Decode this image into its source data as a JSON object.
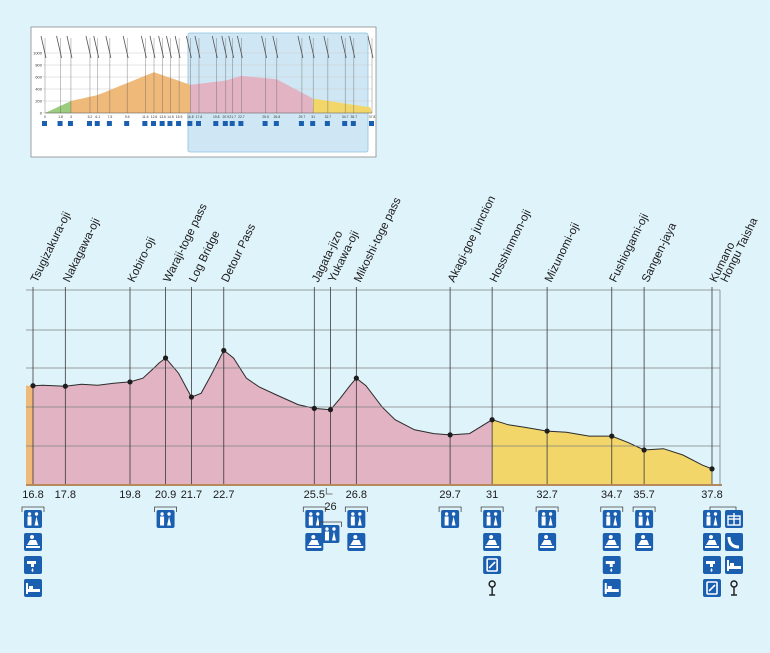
{
  "overview": {
    "markers": [
      {
        "x": 0,
        "y": 0
      },
      {
        "x": 3,
        "y": 200
      },
      {
        "x": 6.1,
        "y": 300
      },
      {
        "x": 9.5,
        "y": 500
      },
      {
        "x": 12.6,
        "y": 680
      },
      {
        "x": 16.8,
        "y": 470
      },
      {
        "x": 20.9,
        "y": 540
      },
      {
        "x": 22.7,
        "y": 620
      },
      {
        "x": 26.8,
        "y": 560
      },
      {
        "x": 31,
        "y": 240
      },
      {
        "x": 37.8,
        "y": 90
      }
    ],
    "tick_labels": [
      "0",
      "1.8",
      "3",
      "5.2",
      "6.1",
      "7.5",
      "9.5",
      "11.6",
      "12.6",
      "13.6",
      "14.5",
      "15.5",
      "16.8",
      "17.8",
      "19.8",
      "20.9",
      "21.7",
      "22.7",
      "25.5",
      "26.8",
      "29.7",
      "31",
      "32.7",
      "34.7",
      "35.7",
      "37.8"
    ],
    "y_ticks": [
      0,
      200,
      400,
      600,
      800,
      1000
    ]
  },
  "chart_data": {
    "type": "area",
    "x_range": [
      16.8,
      37.8
    ],
    "profile": [
      [
        16.8,
        390
      ],
      [
        17.1,
        392
      ],
      [
        17.8,
        388
      ],
      [
        18.3,
        396
      ],
      [
        18.8,
        392
      ],
      [
        19.3,
        400
      ],
      [
        19.8,
        405
      ],
      [
        20.2,
        420
      ],
      [
        20.5,
        455
      ],
      [
        20.7,
        480
      ],
      [
        20.9,
        500
      ],
      [
        21.3,
        440
      ],
      [
        21.7,
        345
      ],
      [
        22.0,
        360
      ],
      [
        22.3,
        430
      ],
      [
        22.7,
        530
      ],
      [
        23.0,
        500
      ],
      [
        23.4,
        420
      ],
      [
        23.8,
        385
      ],
      [
        24.3,
        355
      ],
      [
        25.0,
        315
      ],
      [
        25.5,
        300
      ],
      [
        26.0,
        295
      ],
      [
        26.3,
        340
      ],
      [
        26.6,
        390
      ],
      [
        26.8,
        420
      ],
      [
        27.1,
        390
      ],
      [
        27.6,
        305
      ],
      [
        28.0,
        255
      ],
      [
        28.6,
        215
      ],
      [
        29.2,
        200
      ],
      [
        29.7,
        195
      ],
      [
        30.3,
        200
      ],
      [
        31.0,
        255
      ],
      [
        31.5,
        235
      ],
      [
        32.0,
        225
      ],
      [
        32.7,
        210
      ],
      [
        33.3,
        205
      ],
      [
        34.0,
        190
      ],
      [
        34.7,
        190
      ],
      [
        35.2,
        165
      ],
      [
        35.7,
        135
      ],
      [
        36.3,
        140
      ],
      [
        36.9,
        115
      ],
      [
        37.5,
        75
      ],
      [
        37.8,
        60
      ]
    ],
    "segments": [
      {
        "from": 16.8,
        "to": 31,
        "color": "#e1b3c3"
      },
      {
        "from": 31,
        "to": 37.8,
        "color": "#f2d66a"
      }
    ],
    "start_band_color": "#efb97a",
    "points": [
      {
        "name": "Tsugizakura-oji",
        "x": 16.8,
        "y": 390,
        "dot": true
      },
      {
        "name": "Nakagawa-oji",
        "x": 17.8,
        "y": 388,
        "dot": true
      },
      {
        "name": "Kobiro-oji",
        "x": 19.8,
        "y": 405,
        "dot": true
      },
      {
        "name": "Waraji-toge pass",
        "x": 20.9,
        "y": 500,
        "dot": true
      },
      {
        "name": "Log Bridge",
        "x": 21.7,
        "y": 345,
        "dot": true
      },
      {
        "name": "Detour Pass",
        "x": 22.7,
        "y": 530,
        "dot": true
      },
      {
        "name": "Jagata-jizo",
        "x": 25.5,
        "y": 300,
        "dot": true
      },
      {
        "name": "Yukawa-oji",
        "x": 26,
        "y": 295,
        "dot": true
      },
      {
        "name": "Mikoshi-toge pass",
        "x": 26.8,
        "y": 420,
        "dot": true
      },
      {
        "name": "Akagi-goe junction",
        "x": 29.7,
        "y": 195,
        "dot": true
      },
      {
        "name": "Hosshinmon-oji",
        "x": 31,
        "y": 255,
        "dot": true
      },
      {
        "name": "Mizunomi-oji",
        "x": 32.7,
        "y": 210,
        "dot": true
      },
      {
        "name": "Fushiogami-oji",
        "x": 34.7,
        "y": 190,
        "dot": true
      },
      {
        "name": "Sangen-jaya",
        "x": 35.7,
        "y": 135,
        "dot": true
      },
      {
        "name": "Kumano\nHongu Taisha",
        "x": 37.8,
        "y": 60,
        "dot": true
      }
    ],
    "x_tick_labels": [
      {
        "x": 16.8,
        "label": "16.8"
      },
      {
        "x": 17.8,
        "label": "17.8"
      },
      {
        "x": 19.8,
        "label": "19.8"
      },
      {
        "x": 20.9,
        "label": "20.9"
      },
      {
        "x": 21.7,
        "label": "21.7"
      },
      {
        "x": 22.7,
        "label": "22.7"
      },
      {
        "x": 25.5,
        "label": "25.5"
      },
      {
        "x": 26,
        "label": "26"
      },
      {
        "x": 26.8,
        "label": "26.8"
      },
      {
        "x": 29.7,
        "label": "29.7"
      },
      {
        "x": 31,
        "label": "31"
      },
      {
        "x": 32.7,
        "label": "32.7"
      },
      {
        "x": 34.7,
        "label": "34.7"
      },
      {
        "x": 35.7,
        "label": "35.7"
      },
      {
        "x": 37.8,
        "label": "37.8"
      }
    ],
    "facilities": [
      {
        "x": 16.8,
        "icons": [
          "toilet",
          "rest-area",
          "water",
          "accommodation"
        ]
      },
      {
        "x": 20.9,
        "icons": [
          "toilet"
        ]
      },
      {
        "x": 25.5,
        "icons": [
          "toilet",
          "rest-area"
        ]
      },
      {
        "x": 26,
        "icons": [
          "toilet"
        ]
      },
      {
        "x": 26.8,
        "icons": [
          "toilet",
          "rest-area"
        ]
      },
      {
        "x": 29.7,
        "icons": [
          "toilet"
        ]
      },
      {
        "x": 31,
        "icons": [
          "toilet",
          "rest-area",
          "vending-machine",
          "bus-stop"
        ]
      },
      {
        "x": 32.7,
        "icons": [
          "toilet",
          "rest-area"
        ]
      },
      {
        "x": 34.7,
        "icons": [
          "toilet",
          "rest-area",
          "water",
          "accommodation"
        ]
      },
      {
        "x": 35.7,
        "icons": [
          "toilet",
          "rest-area"
        ]
      },
      {
        "x": 37.8,
        "icons": [
          "toilet",
          "rest-area",
          "water",
          "vending-machine"
        ]
      },
      {
        "x": 37.8,
        "icons": [
          "gift",
          "phone",
          "accommodation",
          "bus-stop"
        ],
        "column": 2
      }
    ],
    "grid": true
  }
}
